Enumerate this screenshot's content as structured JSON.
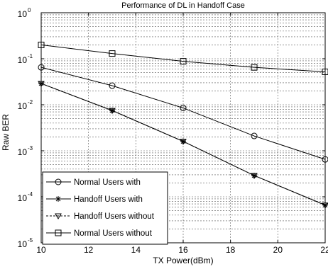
{
  "chart_data": {
    "type": "line",
    "title": "Performance of DL in Handoff Case",
    "xlabel": "TX Power(dBm)",
    "ylabel": "Raw BER",
    "xlim": [
      10,
      22
    ],
    "ylim": [
      1e-05,
      1
    ],
    "y_scale": "log",
    "grid": true,
    "legend_position": "bottom-left",
    "x_ticks": [
      10,
      12,
      14,
      16,
      18,
      20,
      22
    ],
    "y_ticks": [
      {
        "value": 1e-05,
        "base": "10",
        "exp": "-5"
      },
      {
        "value": 0.0001,
        "base": "10",
        "exp": "-4"
      },
      {
        "value": 0.001,
        "base": "10",
        "exp": "-3"
      },
      {
        "value": 0.01,
        "base": "10",
        "exp": "-2"
      },
      {
        "value": 0.1,
        "base": "10",
        "exp": "-1"
      },
      {
        "value": 1,
        "base": "10",
        "exp": "0"
      }
    ],
    "series": [
      {
        "name": "Normal Users with",
        "marker": "circle",
        "color": "#000000",
        "x": [
          10,
          13,
          16,
          19,
          22
        ],
        "y": [
          0.065,
          0.026,
          0.0085,
          0.0021,
          0.00065
        ]
      },
      {
        "name": "Handoff Users with",
        "marker": "star",
        "color": "#000000",
        "x": [
          10,
          13,
          16,
          19,
          22
        ],
        "y": [
          0.029,
          0.0075,
          0.0016,
          0.00029,
          6.6e-05
        ]
      },
      {
        "name": "Handoff Users without",
        "marker": "triangle-down",
        "color": "#000000",
        "x": [
          10,
          13,
          16,
          19,
          22
        ],
        "y": [
          0.029,
          0.0075,
          0.0016,
          0.00029,
          6.6e-05
        ]
      },
      {
        "name": "Normal Users without",
        "marker": "square",
        "color": "#000000",
        "x": [
          10,
          13,
          16,
          19,
          22
        ],
        "y": [
          0.2,
          0.13,
          0.088,
          0.065,
          0.052
        ]
      }
    ]
  }
}
